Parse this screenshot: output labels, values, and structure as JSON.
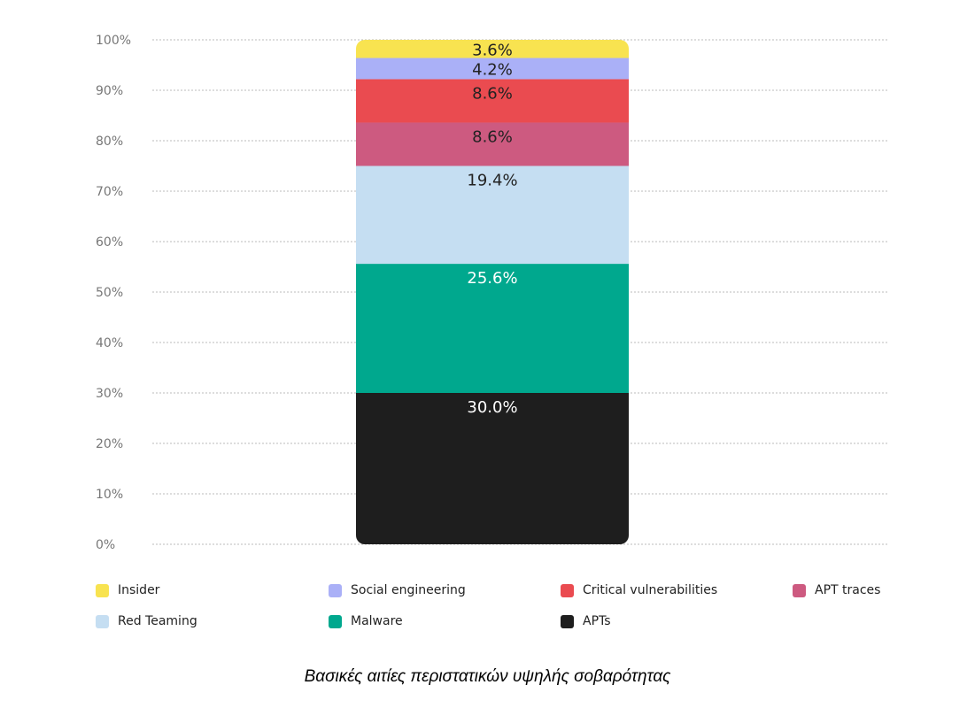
{
  "chart_data": {
    "type": "bar",
    "stacked": true,
    "categories": [
      ""
    ],
    "series": [
      {
        "name": "APTs",
        "values": [
          30.0
        ],
        "label": "30.0%",
        "color": "#1e1e1e",
        "text_color": "#ffffff"
      },
      {
        "name": "Malware",
        "values": [
          25.6
        ],
        "label": "25.6%",
        "color": "#00a88e",
        "text_color": "#ffffff"
      },
      {
        "name": "Red Teaming",
        "values": [
          19.4
        ],
        "label": "19.4%",
        "color": "#c5def2",
        "text_color": "#222222"
      },
      {
        "name": "APT traces",
        "values": [
          8.6
        ],
        "label": "8.6%",
        "color": "#cd5a80",
        "text_color": "#222222"
      },
      {
        "name": "Critical vulnerabilities",
        "values": [
          8.6
        ],
        "label": "8.6%",
        "color": "#ea4b50",
        "text_color": "#222222"
      },
      {
        "name": "Social engineering",
        "values": [
          4.2
        ],
        "label": "4.2%",
        "color": "#aab0f7",
        "text_color": "#222222"
      },
      {
        "name": "Insider",
        "values": [
          3.6
        ],
        "label": "3.6%",
        "color": "#f8e350",
        "text_color": "#222222"
      }
    ],
    "yticks": [
      "0%",
      "10%",
      "20%",
      "30%",
      "40%",
      "50%",
      "60%",
      "70%",
      "80%",
      "90%",
      "100%"
    ],
    "ylim": [
      0,
      100
    ],
    "grid": true,
    "legend": {
      "position": "bottom",
      "order": [
        "Insider",
        "Social engineering",
        "Critical vulnerabilities",
        "APT traces",
        "Red Teaming",
        "Malware",
        "APTs"
      ]
    }
  },
  "caption": "Βασικές αιτίες περιστατικών υψηλής σοβαρότητας"
}
